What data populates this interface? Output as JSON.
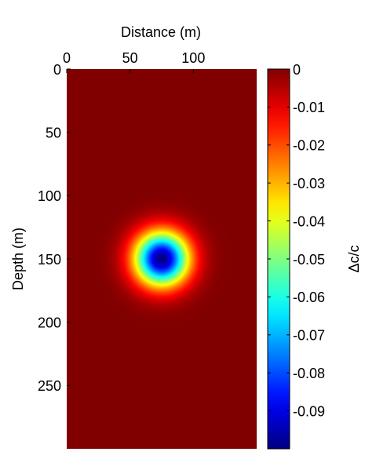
{
  "chart_data": {
    "type": "heatmap",
    "xlabel": "Distance (m)",
    "ylabel": "Depth (m)",
    "colorbar_label": "Δc/c",
    "xlim": [
      0,
      150
    ],
    "xticks": [
      0,
      50,
      100
    ],
    "ylim": [
      0,
      300
    ],
    "yticks": [
      0,
      50,
      100,
      150,
      200,
      250
    ],
    "y_inverted": true,
    "colormap": "jet",
    "clim": [
      -0.1,
      0
    ],
    "cticks": [
      0,
      -0.01,
      -0.02,
      -0.03,
      -0.04,
      -0.05,
      -0.06,
      -0.07,
      -0.08,
      -0.09
    ],
    "background": 0,
    "anomaly": {
      "x": 75,
      "y": 150,
      "amplitude": -0.1,
      "sigma": 15
    }
  }
}
